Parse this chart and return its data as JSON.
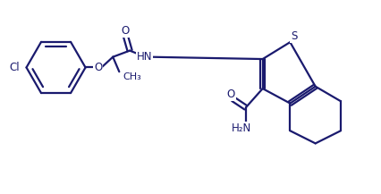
{
  "bg_color": "#ffffff",
  "line_color": "#1a1a6e",
  "line_width": 1.6,
  "font_size": 8.5,
  "figsize": [
    4.27,
    2.17
  ],
  "dpi": 100,
  "xlim": [
    0,
    90
  ],
  "ylim": [
    0,
    46
  ]
}
